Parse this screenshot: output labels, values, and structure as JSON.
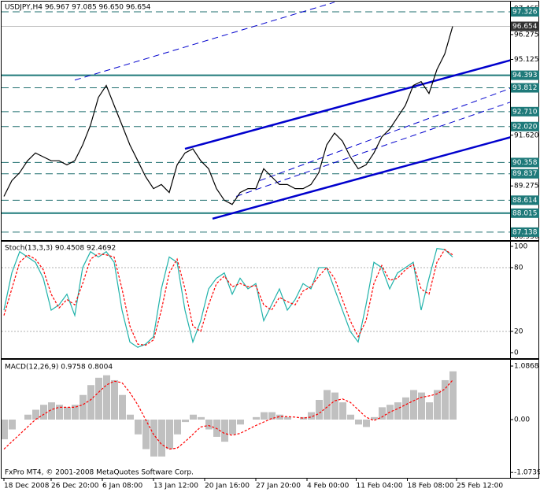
{
  "chart_data": [
    {
      "type": "line",
      "title": "USDJPY,H4  96.967 97.085 96.650 96.654",
      "xlim": [
        -0.3,
        64.3
      ],
      "ylim": [
        86.77,
        97.8
      ],
      "yticks": [
        97.465,
        96.275,
        95.125,
        {
          "value": 91.62,
          "label": "91.620"
        },
        89.275,
        {
          "value": 86.93,
          "label": "86.930"
        }
      ],
      "levels": [
        97.326,
        93.812,
        {
          "value": 92.71,
          "label": "92.710"
        },
        {
          "value": 92.02,
          "label": "92.020"
        },
        90.358,
        89.837,
        88.614,
        87.138
      ],
      "solid_levels": [
        94.393,
        88.015
      ],
      "last_price": 96.654,
      "trendlines": [
        {
          "from": [
            26.5,
            87.76
          ],
          "to": [
            68.1,
            91.9
          ],
          "width": 2.5,
          "dash": false
        },
        {
          "from": [
            23,
            90.99
          ],
          "to": [
            68.1,
            95.46
          ],
          "width": 2.5,
          "dash": false
        },
        {
          "from": [
            9,
            94.17
          ],
          "to": [
            42,
            97.77
          ],
          "width": 1,
          "dash": true
        },
        {
          "from": [
            29.5,
            88.79
          ],
          "to": [
            68.1,
            93.62
          ],
          "width": 1,
          "dash": true
        },
        {
          "from": [
            32.5,
            89.52
          ],
          "to": [
            68.1,
            94.29
          ],
          "width": 1,
          "dash": true
        }
      ],
      "series": [
        {
          "color": "#000000",
          "dash": false,
          "values": [
            88.79,
            89.52,
            89.89,
            90.44,
            90.8,
            90.62,
            90.44,
            90.44,
            90.25,
            90.44,
            91.17,
            92.09,
            93.37,
            93.92,
            93.0,
            92.09,
            91.17,
            90.44,
            89.7,
            89.15,
            89.34,
            88.97,
            90.25,
            90.8,
            90.99,
            90.44,
            90.07,
            89.15,
            88.61,
            88.42,
            88.97,
            89.15,
            89.15,
            90.07,
            89.7,
            89.34,
            89.34,
            89.15,
            89.15,
            89.34,
            89.89,
            91.17,
            91.72,
            91.35,
            90.62,
            90.07,
            90.25,
            90.8,
            91.54,
            91.9,
            92.45,
            93.0,
            93.92,
            94.1,
            93.55,
            94.65,
            95.38,
            96.65
          ]
        }
      ]
    },
    {
      "type": "line",
      "title": "Stoch(13,3,3) 90.4508 92.4692",
      "xlim": [
        -0.3,
        64.3
      ],
      "ylim": [
        -5.2,
        104.4
      ],
      "yticks": [
        100,
        80,
        20,
        0
      ],
      "guides": [
        80,
        20
      ],
      "series": [
        {
          "color": "#20b2aa",
          "dash": false,
          "values": [
            40,
            75,
            95,
            90,
            85,
            70,
            40,
            45,
            55,
            35,
            80,
            95,
            90,
            95,
            85,
            40,
            10,
            5,
            8,
            15,
            60,
            90,
            85,
            40,
            10,
            30,
            60,
            70,
            75,
            55,
            70,
            60,
            65,
            30,
            45,
            60,
            40,
            50,
            65,
            60,
            80,
            80,
            60,
            40,
            20,
            10,
            45,
            85,
            80,
            60,
            75,
            80,
            85,
            40,
            70,
            98,
            97,
            90
          ]
        },
        {
          "color": "#ff0000",
          "dash": true,
          "values": [
            35,
            60,
            85,
            92,
            88,
            78,
            55,
            42,
            50,
            45,
            65,
            88,
            93,
            92,
            90,
            60,
            25,
            8,
            7,
            12,
            40,
            75,
            88,
            60,
            25,
            20,
            45,
            65,
            72,
            62,
            65,
            62,
            63,
            45,
            40,
            52,
            48,
            45,
            58,
            62,
            72,
            80,
            70,
            50,
            30,
            15,
            30,
            65,
            82,
            68,
            70,
            78,
            83,
            60,
            55,
            85,
            97,
            92
          ]
        }
      ]
    },
    {
      "type": "combo",
      "title": "MACD(12,26,9) 0.9758 0.8004",
      "xlim": [
        -0.3,
        64.3
      ],
      "ylim": [
        -1.183,
        1.215
      ],
      "yticks": [
        1.0868,
        {
          "value": 0,
          "label": "0.00"
        },
        -1.0739
      ],
      "series": [
        {
          "kind": "bar",
          "color": "#c0c0c0",
          "values": [
            -0.4,
            -0.2,
            0.0,
            0.1,
            0.2,
            0.3,
            0.35,
            0.3,
            0.25,
            0.3,
            0.5,
            0.7,
            0.85,
            0.9,
            0.8,
            0.5,
            0.1,
            -0.3,
            -0.6,
            -0.75,
            -0.75,
            -0.6,
            -0.3,
            -0.05,
            0.1,
            0.05,
            -0.2,
            -0.35,
            -0.45,
            -0.3,
            -0.1,
            0.0,
            0.05,
            0.15,
            0.15,
            0.1,
            0.05,
            0.0,
            0.05,
            0.15,
            0.4,
            0.6,
            0.55,
            0.35,
            0.1,
            -0.1,
            -0.15,
            0.05,
            0.25,
            0.3,
            0.35,
            0.45,
            0.6,
            0.55,
            0.35,
            0.6,
            0.8,
            0.98
          ]
        },
        {
          "kind": "line",
          "color": "#ff0000",
          "dash": true,
          "values": [
            -0.6,
            -0.45,
            -0.3,
            -0.15,
            0.0,
            0.1,
            0.2,
            0.25,
            0.25,
            0.25,
            0.3,
            0.4,
            0.55,
            0.7,
            0.78,
            0.75,
            0.55,
            0.3,
            0.0,
            -0.3,
            -0.5,
            -0.6,
            -0.58,
            -0.45,
            -0.3,
            -0.15,
            -0.12,
            -0.18,
            -0.28,
            -0.32,
            -0.28,
            -0.2,
            -0.12,
            -0.05,
            0.02,
            0.06,
            0.06,
            0.05,
            0.03,
            0.05,
            0.12,
            0.25,
            0.38,
            0.42,
            0.35,
            0.2,
            0.05,
            -0.02,
            0.05,
            0.15,
            0.22,
            0.3,
            0.38,
            0.45,
            0.48,
            0.52,
            0.62,
            0.8
          ]
        }
      ],
      "xticks": [
        {
          "value": 0,
          "label": "18 Dec 2008"
        },
        {
          "value": 6,
          "label": "26 Dec 20:00"
        },
        {
          "value": 12.5,
          "label": "6 Jan 08:00"
        },
        {
          "value": 19,
          "label": "13 Jan 12:00"
        },
        {
          "value": 25.5,
          "label": "20 Jan 16:00"
        },
        {
          "value": 32,
          "label": "27 Jan 20:00"
        },
        {
          "value": 38.5,
          "label": "4 Feb 00:00"
        },
        {
          "value": 44.75,
          "label": "11 Feb 04:00"
        },
        {
          "value": 51.25,
          "label": "18 Feb 08:00"
        },
        {
          "value": 57.5,
          "label": "25 Feb 12:00"
        }
      ]
    }
  ],
  "footer": "FxPro MT4, © 2001-2008 MetaQuotes Software Corp."
}
